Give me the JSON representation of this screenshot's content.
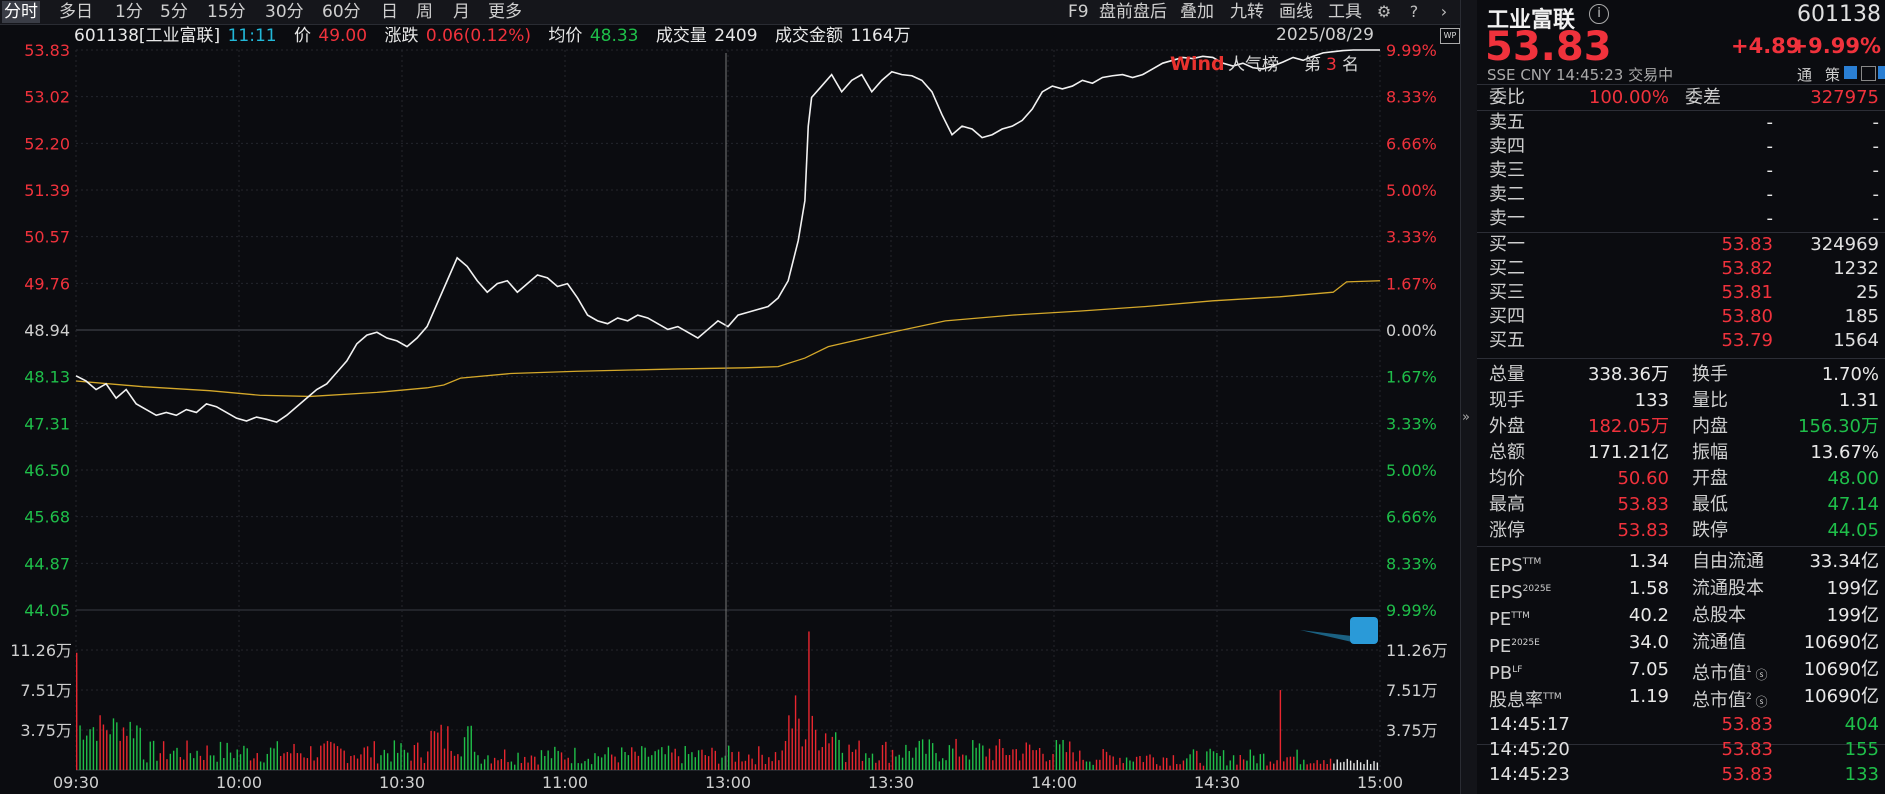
{
  "toolbar": {
    "periods": [
      "分时",
      "多日",
      "1分",
      "5分",
      "15分",
      "30分",
      "60分",
      "日",
      "周",
      "月",
      "更多"
    ],
    "active_period": "分时",
    "right_items": [
      "F9",
      "盘前盘后",
      "叠加",
      "九转",
      "画线",
      "工具"
    ],
    "icons": [
      "gear-icon",
      "help-icon",
      "chevron-right-icon"
    ]
  },
  "info": {
    "code_name": "601138[工业富联]",
    "time": "11:11",
    "price_label": "价",
    "price": "49.00",
    "change_label": "涨跌",
    "change": "0.06(0.12%)",
    "avg_label": "均价",
    "avg": "48.33",
    "volume_label": "成交量",
    "volume": "2409",
    "amount_label": "成交金额",
    "amount": "1164万",
    "date": "2025/08/29"
  },
  "popularity": {
    "logo": "Wind",
    "label": "人气榜",
    "rank_prefix": "第",
    "rank": "3",
    "rank_suffix": "名"
  },
  "chart_data": {
    "type": "line",
    "prev_close": 48.94,
    "price_axis": {
      "left_labels": [
        "53.83",
        "53.02",
        "52.20",
        "51.39",
        "50.57",
        "49.76",
        "48.94",
        "48.13",
        "47.31",
        "46.50",
        "45.68",
        "44.87",
        "44.05"
      ],
      "right_labels": [
        "9.99%",
        "8.33%",
        "6.66%",
        "5.00%",
        "3.33%",
        "1.67%",
        "0.00%",
        "1.67%",
        "3.33%",
        "5.00%",
        "6.66%",
        "8.33%",
        "9.99%"
      ],
      "ylim": [
        44.05,
        53.83
      ]
    },
    "volume_axis": {
      "labels": [
        "11.26万",
        "7.51万",
        "3.75万"
      ]
    },
    "time_labels": [
      "09:30",
      "10:00",
      "10:30",
      "11:00",
      "13:00",
      "13:30",
      "14:00",
      "14:30",
      "15:00"
    ],
    "series": [
      {
        "key": "price",
        "points": [
          [
            0,
            48.14
          ],
          [
            3,
            48.05
          ],
          [
            6,
            47.9
          ],
          [
            9,
            48.0
          ],
          [
            12,
            47.75
          ],
          [
            15,
            47.9
          ],
          [
            18,
            47.65
          ],
          [
            21,
            47.55
          ],
          [
            24,
            47.45
          ],
          [
            27,
            47.5
          ],
          [
            30,
            47.45
          ],
          [
            33,
            47.55
          ],
          [
            36,
            47.5
          ],
          [
            39,
            47.65
          ],
          [
            42,
            47.6
          ],
          [
            45,
            47.5
          ],
          [
            48,
            47.4
          ],
          [
            51,
            47.35
          ],
          [
            54,
            47.42
          ],
          [
            57,
            47.38
          ],
          [
            60,
            47.33
          ],
          [
            63,
            47.45
          ],
          [
            66,
            47.6
          ],
          [
            69,
            47.75
          ],
          [
            72,
            47.9
          ],
          [
            75,
            48.0
          ],
          [
            78,
            48.2
          ],
          [
            81,
            48.4
          ],
          [
            84,
            48.7
          ],
          [
            87,
            48.85
          ],
          [
            90,
            48.9
          ],
          [
            93,
            48.8
          ],
          [
            96,
            48.75
          ],
          [
            99,
            48.65
          ],
          [
            102,
            48.8
          ],
          [
            105,
            49.0
          ],
          [
            108,
            49.4
          ],
          [
            111,
            49.8
          ],
          [
            114,
            50.2
          ],
          [
            117,
            50.05
          ],
          [
            120,
            49.8
          ],
          [
            123,
            49.6
          ],
          [
            126,
            49.75
          ],
          [
            129,
            49.8
          ],
          [
            132,
            49.6
          ],
          [
            135,
            49.75
          ],
          [
            138,
            49.9
          ],
          [
            141,
            49.85
          ],
          [
            144,
            49.7
          ],
          [
            147,
            49.75
          ],
          [
            150,
            49.5
          ],
          [
            153,
            49.2
          ],
          [
            156,
            49.1
          ],
          [
            159,
            49.05
          ],
          [
            162,
            49.15
          ],
          [
            165,
            49.1
          ],
          [
            168,
            49.2
          ],
          [
            171,
            49.15
          ],
          [
            174,
            49.05
          ],
          [
            177,
            48.95
          ],
          [
            180,
            49.0
          ],
          [
            183,
            48.9
          ],
          [
            186,
            48.8
          ],
          [
            189,
            48.95
          ],
          [
            192,
            49.1
          ],
          [
            195,
            49.0
          ],
          [
            198,
            49.2
          ],
          [
            201,
            49.25
          ],
          [
            204,
            49.3
          ],
          [
            207,
            49.35
          ],
          [
            210,
            49.5
          ],
          [
            213,
            49.8
          ],
          [
            216,
            50.5
          ],
          [
            218,
            51.2
          ],
          [
            219,
            52.5
          ],
          [
            220,
            53.0
          ],
          [
            223,
            53.2
          ],
          [
            226,
            53.4
          ],
          [
            229,
            53.1
          ],
          [
            232,
            53.3
          ],
          [
            235,
            53.4
          ],
          [
            238,
            53.1
          ],
          [
            241,
            53.3
          ],
          [
            244,
            53.45
          ],
          [
            247,
            53.4
          ],
          [
            250,
            53.38
          ],
          [
            253,
            53.3
          ],
          [
            256,
            53.1
          ],
          [
            259,
            52.7
          ],
          [
            262,
            52.35
          ],
          [
            265,
            52.5
          ],
          [
            268,
            52.45
          ],
          [
            271,
            52.3
          ],
          [
            274,
            52.35
          ],
          [
            277,
            52.45
          ],
          [
            280,
            52.5
          ],
          [
            283,
            52.6
          ],
          [
            286,
            52.8
          ],
          [
            289,
            53.1
          ],
          [
            292,
            53.2
          ],
          [
            295,
            53.15
          ],
          [
            298,
            53.2
          ],
          [
            301,
            53.3
          ],
          [
            304,
            53.25
          ],
          [
            307,
            53.35
          ],
          [
            310,
            53.38
          ],
          [
            313,
            53.4
          ],
          [
            316,
            53.35
          ],
          [
            319,
            53.4
          ],
          [
            322,
            53.5
          ],
          [
            325,
            53.6
          ],
          [
            328,
            53.65
          ],
          [
            331,
            53.7
          ],
          [
            334,
            53.68
          ],
          [
            337,
            53.72
          ],
          [
            340,
            53.7
          ],
          [
            343,
            53.6
          ],
          [
            346,
            53.55
          ],
          [
            349,
            53.6
          ],
          [
            352,
            53.52
          ],
          [
            355,
            53.5
          ],
          [
            358,
            53.55
          ],
          [
            361,
            53.62
          ],
          [
            364,
            53.7
          ],
          [
            367,
            53.65
          ],
          [
            370,
            53.72
          ],
          [
            373,
            53.78
          ],
          [
            376,
            53.8
          ],
          [
            379,
            53.82
          ],
          [
            382,
            53.83
          ],
          [
            390,
            53.83
          ]
        ]
      },
      {
        "key": "average",
        "points": [
          [
            0,
            48.05
          ],
          [
            20,
            47.95
          ],
          [
            40,
            47.88
          ],
          [
            55,
            47.8
          ],
          [
            70,
            47.78
          ],
          [
            90,
            47.85
          ],
          [
            105,
            47.93
          ],
          [
            110,
            47.98
          ],
          [
            115,
            48.1
          ],
          [
            130,
            48.18
          ],
          [
            150,
            48.22
          ],
          [
            180,
            48.26
          ],
          [
            200,
            48.28
          ],
          [
            210,
            48.3
          ],
          [
            218,
            48.45
          ],
          [
            225,
            48.65
          ],
          [
            240,
            48.85
          ],
          [
            260,
            49.1
          ],
          [
            280,
            49.2
          ],
          [
            300,
            49.27
          ],
          [
            320,
            49.35
          ],
          [
            340,
            49.45
          ],
          [
            360,
            49.52
          ],
          [
            376,
            49.6
          ],
          [
            380,
            49.78
          ],
          [
            390,
            49.8
          ]
        ]
      }
    ],
    "volume_bars": "approximate-minute-volumes",
    "volume_highlights": [
      [
        0,
        11.0
      ],
      [
        215,
        7.0
      ],
      [
        219,
        13.0
      ],
      [
        360,
        7.5
      ],
      [
        376,
        15.0
      ]
    ]
  },
  "panel": {
    "name": "工业富联",
    "code": "601138",
    "price": "53.83",
    "change": "+4.89",
    "change_pct": "+9.99%",
    "exchange": "SSE",
    "currency": "CNY",
    "time": "14:45:23",
    "status": "交易中",
    "tong": "通",
    "ce": "策",
    "weibi_label": "委比",
    "weibi": "100.00%",
    "weicha_label": "委差",
    "weicha": "327975",
    "asks": [
      {
        "label": "卖五",
        "price": "-",
        "vol": "-"
      },
      {
        "label": "卖四",
        "price": "-",
        "vol": "-"
      },
      {
        "label": "卖三",
        "price": "-",
        "vol": "-"
      },
      {
        "label": "卖二",
        "price": "-",
        "vol": "-"
      },
      {
        "label": "卖一",
        "price": "-",
        "vol": "-"
      }
    ],
    "bids": [
      {
        "label": "买一",
        "price": "53.83",
        "vol": "324969"
      },
      {
        "label": "买二",
        "price": "53.82",
        "vol": "1232"
      },
      {
        "label": "买三",
        "price": "53.81",
        "vol": "25"
      },
      {
        "label": "买四",
        "price": "53.80",
        "vol": "185"
      },
      {
        "label": "买五",
        "price": "53.79",
        "vol": "1564"
      }
    ],
    "stats": [
      {
        "l1": "总量",
        "v1": "338.36万",
        "c1": "white",
        "l2": "换手",
        "v2": "1.70%",
        "c2": "white"
      },
      {
        "l1": "现手",
        "v1": "133",
        "c1": "white",
        "l2": "量比",
        "v2": "1.31",
        "c2": "white"
      },
      {
        "l1": "外盘",
        "v1": "182.05万",
        "c1": "red",
        "l2": "内盘",
        "v2": "156.30万",
        "c2": "green"
      },
      {
        "l1": "总额",
        "v1": "171.21亿",
        "c1": "white",
        "l2": "振幅",
        "v2": "13.67%",
        "c2": "white"
      },
      {
        "l1": "均价",
        "v1": "50.60",
        "c1": "red",
        "l2": "开盘",
        "v2": "48.00",
        "c2": "green"
      },
      {
        "l1": "最高",
        "v1": "53.83",
        "c1": "red",
        "l2": "最低",
        "v2": "47.14",
        "c2": "green"
      },
      {
        "l1": "涨停",
        "v1": "53.83",
        "c1": "red",
        "l2": "跌停",
        "v2": "44.05",
        "c2": "green"
      }
    ],
    "fundamentals": [
      {
        "l1": "EPS",
        "s1": "TTM",
        "v1": "1.34",
        "l2": "自由流通",
        "s2": "",
        "v2": "33.34亿"
      },
      {
        "l1": "EPS",
        "s1": "2025E",
        "v1": "1.58",
        "l2": "流通股本",
        "s2": "",
        "v2": "199亿"
      },
      {
        "l1": "PE",
        "s1": "TTM",
        "v1": "40.2",
        "l2": "总股本",
        "s2": "",
        "v2": "199亿"
      },
      {
        "l1": "PE",
        "s1": "2025E",
        "v1": "34.0",
        "l2": "流通值",
        "s2": "",
        "v2": "10690亿"
      },
      {
        "l1": "PB",
        "s1": "LF",
        "v1": "7.05",
        "l2": "总市值",
        "s2": "1",
        "v2": "10690亿"
      },
      {
        "l1": "股息率",
        "s1": "TTM",
        "v1": "1.19",
        "l2": "总市值",
        "s2": "2",
        "v2": "10690亿"
      }
    ],
    "ticks": [
      {
        "time": "14:45:17",
        "price": "53.83",
        "vol": "404"
      },
      {
        "time": "14:45:20",
        "price": "53.83",
        "vol": "155"
      },
      {
        "time": "14:45:23",
        "price": "53.83",
        "vol": "133"
      }
    ]
  }
}
